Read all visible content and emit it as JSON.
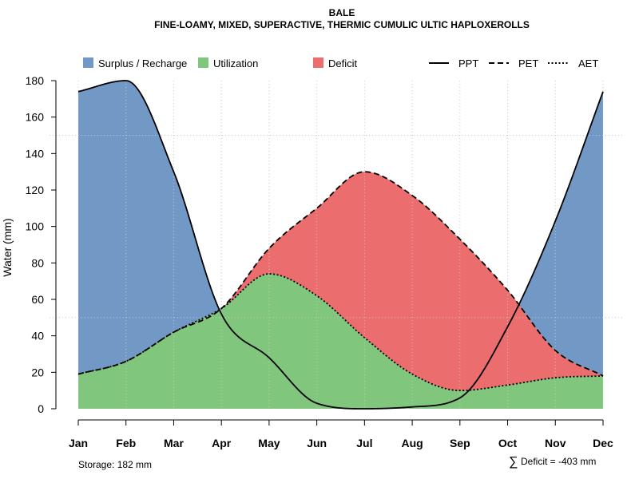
{
  "chart_data": {
    "type": "area",
    "title": "BALE",
    "subtitle": "FINE-LOAMY, MIXED, SUPERACTIVE, THERMIC CUMULIC ULTIC HAPLOXEROLLS",
    "ylabel": "Water (mm)",
    "xlabel": "",
    "ylim": [
      0,
      180
    ],
    "yticks": [
      0,
      20,
      40,
      60,
      80,
      100,
      120,
      140,
      160,
      180
    ],
    "categories": [
      "Jan",
      "Feb",
      "Mar",
      "Apr",
      "May",
      "Jun",
      "Jul",
      "Aug",
      "Sep",
      "Oct",
      "Nov",
      "Dec"
    ],
    "grid": true,
    "legend_position": "top",
    "legend": {
      "areas": [
        {
          "label": "Surplus / Recharge",
          "color": "#7299C6"
        },
        {
          "label": "Utilization",
          "color": "#80C67C"
        },
        {
          "label": "Deficit",
          "color": "#EB6D6E"
        }
      ],
      "lines": [
        {
          "label": "PPT",
          "style": "solid"
        },
        {
          "label": "PET",
          "style": "dashed"
        },
        {
          "label": "AET",
          "style": "dotted"
        }
      ]
    },
    "series": [
      {
        "name": "PPT",
        "values": [
          174,
          180,
          130,
          52,
          28,
          3,
          0,
          1,
          6,
          45,
          103,
          174
        ]
      },
      {
        "name": "PET",
        "values": [
          19,
          26,
          42,
          55,
          88,
          110,
          130,
          117,
          93,
          65,
          32,
          18
        ]
      },
      {
        "name": "AET",
        "values": [
          19,
          26,
          42,
          55,
          74,
          62,
          39,
          19,
          10,
          13,
          17,
          18
        ]
      }
    ],
    "annotations": {
      "storage": "Storage: 182 mm",
      "deficit_symbol": "∑",
      "deficit": "Deficit = -403 mm"
    }
  }
}
